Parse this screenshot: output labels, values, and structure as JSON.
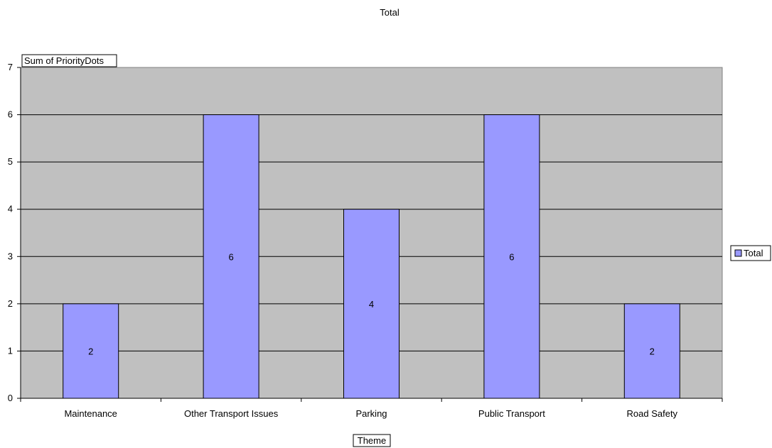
{
  "chart_data": {
    "type": "bar",
    "title": "Total",
    "ylabel": "Sum of PriorityDots",
    "xlabel": "Theme",
    "categories": [
      "Maintenance",
      "Other Transport Issues",
      "Parking",
      "Public Transport",
      "Road Safety"
    ],
    "series": [
      {
        "name": "Total",
        "values": [
          2,
          6,
          4,
          6,
          2
        ],
        "color": "#9999ff"
      }
    ],
    "ylim": [
      0,
      7
    ],
    "yticks": [
      0,
      1,
      2,
      3,
      4,
      5,
      6,
      7
    ],
    "data_labels": [
      "2",
      "6",
      "4",
      "6",
      "2"
    ],
    "grid": true,
    "legend": "right",
    "plot_background": "#c0c0c0"
  }
}
